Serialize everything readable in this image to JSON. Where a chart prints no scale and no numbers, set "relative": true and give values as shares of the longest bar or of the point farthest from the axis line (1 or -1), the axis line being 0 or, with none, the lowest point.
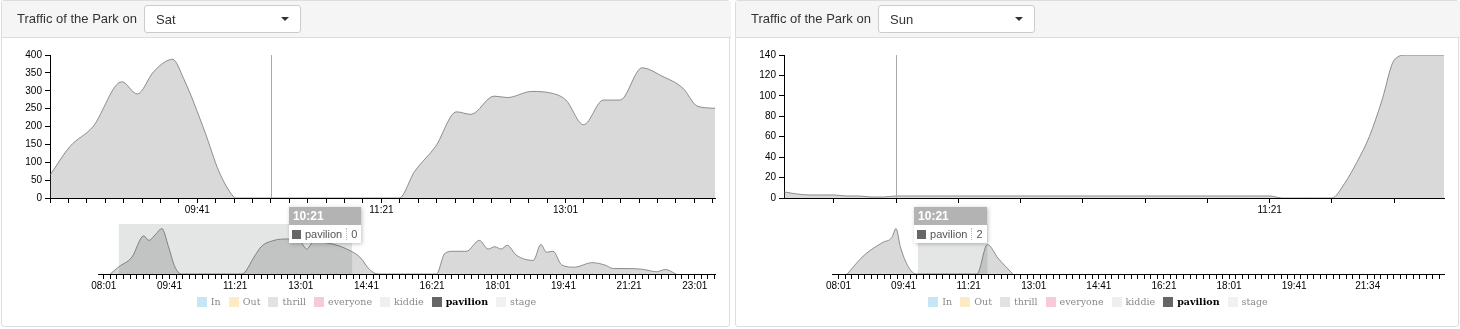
{
  "chart_data": [
    {
      "type": "area",
      "title": "Traffic of the Park on",
      "subtitle": "Sat",
      "x": [
        8.35,
        8.53,
        8.74,
        9.0,
        9.14,
        9.29,
        9.46,
        9.56,
        9.75,
        9.88,
        10.01,
        10.03,
        11.51,
        11.65,
        11.84,
        12.03,
        12.16,
        12.37,
        12.49,
        12.71,
        12.88,
        13.02,
        13.18,
        13.36,
        13.51,
        13.71,
        13.89,
        14.08,
        14.21,
        14.37
      ],
      "series": [
        {
          "name": "pavilion",
          "color": "#666666",
          "values": [
            64,
            144,
            200,
            325,
            291,
            354,
            388,
            334,
            187,
            74,
            4,
            0,
            0,
            74,
            144,
            241,
            234,
            285,
            281,
            298,
            294,
            274,
            205,
            274,
            274,
            364,
            341,
            307,
            257,
            251
          ]
        }
      ],
      "xlim": [
        8.35,
        14.37
      ],
      "ylim": [
        0,
        400
      ],
      "yticks": [
        0,
        50,
        100,
        150,
        200,
        250,
        300,
        350,
        400
      ],
      "xticks": [
        {
          "value": 8.35,
          "label": null
        },
        {
          "value": 8.5167,
          "label": null
        },
        {
          "value": 8.6833,
          "label": null
        },
        {
          "value": 8.85,
          "label": null
        },
        {
          "value": 9.0167,
          "label": null
        },
        {
          "value": 9.1833,
          "label": null
        },
        {
          "value": 9.35,
          "label": null
        },
        {
          "value": 9.5167,
          "label": null
        },
        {
          "value": 9.6833,
          "label": "09:41"
        },
        {
          "value": 9.85,
          "label": null
        },
        {
          "value": 10.0167,
          "label": null
        },
        {
          "value": 10.1833,
          "label": null
        },
        {
          "value": 10.35,
          "label": null
        },
        {
          "value": 10.5167,
          "label": null
        },
        {
          "value": 10.6833,
          "label": null
        },
        {
          "value": 10.85,
          "label": null
        },
        {
          "value": 11.0167,
          "label": null
        },
        {
          "value": 11.1833,
          "label": null
        },
        {
          "value": 11.35,
          "label": "11:21"
        },
        {
          "value": 11.5167,
          "label": null
        },
        {
          "value": 11.6833,
          "label": null
        },
        {
          "value": 11.85,
          "label": null
        },
        {
          "value": 12.0167,
          "label": null
        },
        {
          "value": 12.1833,
          "label": null
        },
        {
          "value": 12.35,
          "label": null
        },
        {
          "value": 12.5167,
          "label": null
        },
        {
          "value": 12.6833,
          "label": null
        },
        {
          "value": 12.85,
          "label": null
        },
        {
          "value": 13.0167,
          "label": "13:01"
        },
        {
          "value": 13.1833,
          "label": null
        },
        {
          "value": 13.35,
          "label": null
        },
        {
          "value": 13.5167,
          "label": null
        },
        {
          "value": 13.6833,
          "label": null
        },
        {
          "value": 13.85,
          "label": null
        },
        {
          "value": 14.0167,
          "label": null
        },
        {
          "value": 14.1833,
          "label": null
        },
        {
          "value": 14.35,
          "label": null
        }
      ],
      "ref_lines": [
        {
          "axis": "x",
          "value": 10.35
        }
      ],
      "annotations": [
        "10:21",
        "0"
      ]
    },
    {
      "type": "area",
      "relative": true,
      "legend": "bottom",
      "tick_labels": "x",
      "series": [
        {
          "name": "In",
          "color": "#c6e6f8"
        },
        {
          "name": "Out",
          "color": "#fdebc3"
        },
        {
          "name": "thrill",
          "color": "#e2e2e2"
        },
        {
          "name": "everyone",
          "color": "#f8c8dc"
        },
        {
          "name": "kiddie",
          "color": "#efefef"
        },
        {
          "name": "pavilion",
          "color": "#666666",
          "x": [
            8.18,
            8.4,
            8.73,
            9.03,
            9.16,
            9.33,
            9.49,
            9.66,
            9.82,
            9.99,
            11.52,
            11.85,
            12.01,
            12.34,
            12.67,
            13.0,
            13.17,
            13.33,
            13.71,
            14.3,
            14.54,
            14.76,
            14.98,
            16.46,
            16.67,
            16.89,
            17.22,
            17.55,
            17.77,
            17.94,
            18.1,
            18.26,
            18.48,
            18.92,
            19.11,
            19.25,
            19.42,
            19.64,
            19.97,
            20.4,
            20.73,
            20.95,
            21.39,
            21.72,
            22.05,
            22.27,
            22.54
          ],
          "values": [
            0,
            0.16,
            0.37,
            0.84,
            0.74,
            0.87,
            1,
            0.6,
            0.16,
            0,
            0,
            0.4,
            0.6,
            0.74,
            0.77,
            0.72,
            0.55,
            0.7,
            0.68,
            0.5,
            0.35,
            0.1,
            0,
            0,
            0.45,
            0.5,
            0.5,
            0.74,
            0.55,
            0.6,
            0.55,
            0.63,
            0.42,
            0.3,
            0.65,
            0.48,
            0.5,
            0.2,
            0.15,
            0.25,
            0.2,
            0.12,
            0.12,
            0.1,
            0.05,
            0.1,
            0
          ]
        },
        {
          "name": "stage",
          "color": "#f0f1f3"
        }
      ],
      "xlim": [
        7.87,
        23.53
      ],
      "xticks": [
        {
          "value": 8.0167,
          "label": "08:01"
        },
        {
          "value": 8.1833,
          "label": null
        },
        {
          "value": 8.35,
          "label": null
        },
        {
          "value": 8.5167,
          "label": null
        },
        {
          "value": 8.6833,
          "label": null
        },
        {
          "value": 8.85,
          "label": null
        },
        {
          "value": 9.0167,
          "label": null
        },
        {
          "value": 9.1833,
          "label": null
        },
        {
          "value": 9.35,
          "label": null
        },
        {
          "value": 9.5167,
          "label": null
        },
        {
          "value": 9.6833,
          "label": "09:41"
        },
        {
          "value": 9.85,
          "label": null
        },
        {
          "value": 10.0167,
          "label": null
        },
        {
          "value": 10.1833,
          "label": null
        },
        {
          "value": 10.35,
          "label": null
        },
        {
          "value": 10.5167,
          "label": null
        },
        {
          "value": 10.6833,
          "label": null
        },
        {
          "value": 10.85,
          "label": null
        },
        {
          "value": 11.0167,
          "label": null
        },
        {
          "value": 11.1833,
          "label": null
        },
        {
          "value": 11.35,
          "label": "11:21"
        },
        {
          "value": 11.5167,
          "label": null
        },
        {
          "value": 11.6833,
          "label": null
        },
        {
          "value": 11.85,
          "label": null
        },
        {
          "value": 12.0167,
          "label": null
        },
        {
          "value": 12.1833,
          "label": null
        },
        {
          "value": 12.35,
          "label": null
        },
        {
          "value": 12.5167,
          "label": null
        },
        {
          "value": 12.6833,
          "label": null
        },
        {
          "value": 12.85,
          "label": null
        },
        {
          "value": 13.0167,
          "label": "13:01"
        },
        {
          "value": 13.1833,
          "label": null
        },
        {
          "value": 13.35,
          "label": null
        },
        {
          "value": 13.5167,
          "label": null
        },
        {
          "value": 13.6833,
          "label": null
        },
        {
          "value": 13.85,
          "label": null
        },
        {
          "value": 14.0167,
          "label": null
        },
        {
          "value": 14.1833,
          "label": null
        },
        {
          "value": 14.35,
          "label": null
        },
        {
          "value": 14.5167,
          "label": null
        },
        {
          "value": 14.6833,
          "label": "14:41"
        },
        {
          "value": 14.85,
          "label": null
        },
        {
          "value": 15.0167,
          "label": null
        },
        {
          "value": 15.1833,
          "label": null
        },
        {
          "value": 15.35,
          "label": null
        },
        {
          "value": 15.5167,
          "label": null
        },
        {
          "value": 15.6833,
          "label": null
        },
        {
          "value": 15.85,
          "label": null
        },
        {
          "value": 16.0167,
          "label": null
        },
        {
          "value": 16.1833,
          "label": null
        },
        {
          "value": 16.35,
          "label": "16:21"
        },
        {
          "value": 16.5167,
          "label": null
        },
        {
          "value": 16.6833,
          "label": null
        },
        {
          "value": 16.85,
          "label": null
        },
        {
          "value": 17.0167,
          "label": null
        },
        {
          "value": 17.1833,
          "label": null
        },
        {
          "value": 17.35,
          "label": null
        },
        {
          "value": 17.5167,
          "label": null
        },
        {
          "value": 17.6833,
          "label": null
        },
        {
          "value": 17.85,
          "label": null
        },
        {
          "value": 18.0167,
          "label": "18:01"
        },
        {
          "value": 18.1833,
          "label": null
        },
        {
          "value": 18.35,
          "label": null
        },
        {
          "value": 18.5167,
          "label": null
        },
        {
          "value": 18.6833,
          "label": null
        },
        {
          "value": 18.85,
          "label": null
        },
        {
          "value": 19.0167,
          "label": null
        },
        {
          "value": 19.1833,
          "label": null
        },
        {
          "value": 19.35,
          "label": null
        },
        {
          "value": 19.5167,
          "label": null
        },
        {
          "value": 19.6833,
          "label": "19:41"
        },
        {
          "value": 19.85,
          "label": null
        },
        {
          "value": 20.0167,
          "label": null
        },
        {
          "value": 20.1833,
          "label": null
        },
        {
          "value": 20.35,
          "label": null
        },
        {
          "value": 20.5167,
          "label": null
        },
        {
          "value": 20.6833,
          "label": null
        },
        {
          "value": 20.85,
          "label": null
        },
        {
          "value": 21.0167,
          "label": null
        },
        {
          "value": 21.1833,
          "label": null
        },
        {
          "value": 21.35,
          "label": "21:21"
        },
        {
          "value": 21.5167,
          "label": null
        },
        {
          "value": 21.6833,
          "label": null
        },
        {
          "value": 21.85,
          "label": null
        },
        {
          "value": 22.0167,
          "label": null
        },
        {
          "value": 22.1833,
          "label": null
        },
        {
          "value": 22.35,
          "label": null
        },
        {
          "value": 22.5167,
          "label": null
        },
        {
          "value": 22.6833,
          "label": null
        },
        {
          "value": 22.85,
          "label": null
        },
        {
          "value": 23.0167,
          "label": "23:01"
        },
        {
          "value": 23.1833,
          "label": null
        },
        {
          "value": 23.35,
          "label": null
        },
        {
          "value": 23.5167,
          "label": null
        }
      ],
      "bands": [
        {
          "axis": "x",
          "from": 8.4,
          "to": 14.32
        }
      ]
    },
    {
      "type": "area",
      "title": "Traffic of the Park on",
      "subtitle": "Sun",
      "categories": [
        null,
        null,
        null,
        null,
        null,
        null,
        null,
        null,
        null,
        null,
        null,
        null,
        null,
        null,
        null,
        null,
        null,
        null,
        null,
        null,
        null,
        null,
        null,
        null,
        null,
        null,
        null,
        null,
        null,
        null,
        null,
        null,
        null,
        null,
        null,
        null,
        null,
        null,
        null,
        "11:21",
        null,
        null,
        null,
        null,
        null,
        null,
        null,
        null,
        null,
        null,
        null,
        null,
        null,
        null
      ],
      "series": [
        {
          "name": "pavilion",
          "color": "#666666",
          "values": [
            6,
            4,
            3,
            3,
            3,
            2,
            2,
            1,
            1,
            2,
            2,
            2,
            2,
            2,
            2,
            2,
            2,
            2,
            2,
            2,
            2,
            2,
            2,
            2,
            2,
            2,
            2,
            2,
            2,
            2,
            2,
            2,
            2,
            2,
            2,
            2,
            2,
            2,
            2,
            2,
            0,
            0,
            0,
            0,
            0,
            14,
            35,
            60,
            95,
            135,
            140,
            140,
            140,
            140
          ]
        }
      ],
      "ylim": [
        0,
        140
      ],
      "yticks": [
        0,
        20,
        40,
        60,
        80,
        100,
        120,
        140
      ],
      "annotations": [
        "10:21",
        "2"
      ]
    },
    {
      "type": "area",
      "relative": true,
      "legend": "bottom",
      "tick_labels": "x",
      "series": [
        {
          "name": "In",
          "color": "#c6e6f8"
        },
        {
          "name": "Out",
          "color": "#fdebc3"
        },
        {
          "name": "thrill",
          "color": "#e2e2e2"
        },
        {
          "name": "everyone",
          "color": "#f8c8dc"
        },
        {
          "name": "kiddie",
          "color": "#efefef"
        },
        {
          "name": "pavilion",
          "color": "#666666",
          "x": [
            8.24,
            8.62,
            8.83,
            9.16,
            9.38,
            9.49,
            9.6,
            9.81,
            10.01,
            11.56,
            11.83,
            12.1,
            12.48
          ],
          "values": [
            0,
            0.37,
            0.52,
            0.7,
            0.8,
            1,
            0.6,
            0.15,
            0,
            0,
            0.65,
            0.35,
            0
          ]
        },
        {
          "name": "stage",
          "color": "#f0f1f3"
        }
      ],
      "xlim": [
        7.85,
        23.52
      ],
      "xticks": [
        {
          "value": 8.0167,
          "label": "08:01"
        },
        {
          "value": 8.1833,
          "label": null
        },
        {
          "value": 8.35,
          "label": null
        },
        {
          "value": 8.5167,
          "label": null
        },
        {
          "value": 8.6833,
          "label": null
        },
        {
          "value": 8.85,
          "label": null
        },
        {
          "value": 9.0167,
          "label": null
        },
        {
          "value": 9.1833,
          "label": null
        },
        {
          "value": 9.35,
          "label": null
        },
        {
          "value": 9.5167,
          "label": null
        },
        {
          "value": 9.6833,
          "label": "09:41"
        },
        {
          "value": 9.85,
          "label": null
        },
        {
          "value": 10.0167,
          "label": null
        },
        {
          "value": 10.1833,
          "label": null
        },
        {
          "value": 10.35,
          "label": null
        },
        {
          "value": 10.5167,
          "label": null
        },
        {
          "value": 10.6833,
          "label": null
        },
        {
          "value": 10.85,
          "label": null
        },
        {
          "value": 11.0167,
          "label": null
        },
        {
          "value": 11.1833,
          "label": null
        },
        {
          "value": 11.35,
          "label": "11:21"
        },
        {
          "value": 11.5167,
          "label": null
        },
        {
          "value": 11.6833,
          "label": null
        },
        {
          "value": 11.85,
          "label": null
        },
        {
          "value": 12.0167,
          "label": null
        },
        {
          "value": 12.1833,
          "label": null
        },
        {
          "value": 12.35,
          "label": null
        },
        {
          "value": 12.5167,
          "label": null
        },
        {
          "value": 12.6833,
          "label": null
        },
        {
          "value": 12.85,
          "label": null
        },
        {
          "value": 13.0167,
          "label": "13:01"
        },
        {
          "value": 13.1833,
          "label": null
        },
        {
          "value": 13.35,
          "label": null
        },
        {
          "value": 13.5167,
          "label": null
        },
        {
          "value": 13.6833,
          "label": null
        },
        {
          "value": 13.85,
          "label": null
        },
        {
          "value": 14.0167,
          "label": null
        },
        {
          "value": 14.1833,
          "label": null
        },
        {
          "value": 14.35,
          "label": null
        },
        {
          "value": 14.5167,
          "label": null
        },
        {
          "value": 14.6833,
          "label": "14:41"
        },
        {
          "value": 14.85,
          "label": null
        },
        {
          "value": 15.0167,
          "label": null
        },
        {
          "value": 15.1833,
          "label": null
        },
        {
          "value": 15.35,
          "label": null
        },
        {
          "value": 15.5167,
          "label": null
        },
        {
          "value": 15.6833,
          "label": null
        },
        {
          "value": 15.85,
          "label": null
        },
        {
          "value": 16.0167,
          "label": null
        },
        {
          "value": 16.1833,
          "label": null
        },
        {
          "value": 16.35,
          "label": "16:21"
        },
        {
          "value": 16.5167,
          "label": null
        },
        {
          "value": 16.6833,
          "label": null
        },
        {
          "value": 16.85,
          "label": null
        },
        {
          "value": 17.0167,
          "label": null
        },
        {
          "value": 17.1833,
          "label": null
        },
        {
          "value": 17.35,
          "label": null
        },
        {
          "value": 17.5167,
          "label": null
        },
        {
          "value": 17.6833,
          "label": null
        },
        {
          "value": 17.85,
          "label": null
        },
        {
          "value": 18.0167,
          "label": "18:01"
        },
        {
          "value": 18.1833,
          "label": null
        },
        {
          "value": 18.35,
          "label": null
        },
        {
          "value": 18.5167,
          "label": null
        },
        {
          "value": 18.6833,
          "label": null
        },
        {
          "value": 18.85,
          "label": null
        },
        {
          "value": 19.0167,
          "label": null
        },
        {
          "value": 19.1833,
          "label": null
        },
        {
          "value": 19.35,
          "label": null
        },
        {
          "value": 19.5167,
          "label": null
        },
        {
          "value": 19.6833,
          "label": "19:41"
        },
        {
          "value": 19.85,
          "label": null
        },
        {
          "value": 20.0167,
          "label": null
        },
        {
          "value": 20.1833,
          "label": null
        },
        {
          "value": 20.35,
          "label": null
        },
        {
          "value": 20.5167,
          "label": null
        },
        {
          "value": 20.6833,
          "label": null
        },
        {
          "value": 20.85,
          "label": null
        },
        {
          "value": 21.0167,
          "label": null
        },
        {
          "value": 21.1833,
          "label": null
        },
        {
          "value": 21.35,
          "label": null
        },
        {
          "value": 21.5667,
          "label": "21:34"
        },
        {
          "value": 21.7333,
          "label": null
        },
        {
          "value": 21.9,
          "label": null
        },
        {
          "value": 22.0667,
          "label": null
        },
        {
          "value": 22.2333,
          "label": null
        },
        {
          "value": 22.4,
          "label": null
        },
        {
          "value": 22.5667,
          "label": null
        },
        {
          "value": 22.7333,
          "label": null
        },
        {
          "value": 22.9,
          "label": null
        },
        {
          "value": 23.0667,
          "label": null
        },
        {
          "value": 23.2333,
          "label": null
        },
        {
          "value": 23.4,
          "label": null
        }
      ],
      "bands": [
        {
          "axis": "x",
          "from": 10.05,
          "to": 11.83
        }
      ]
    }
  ]
}
